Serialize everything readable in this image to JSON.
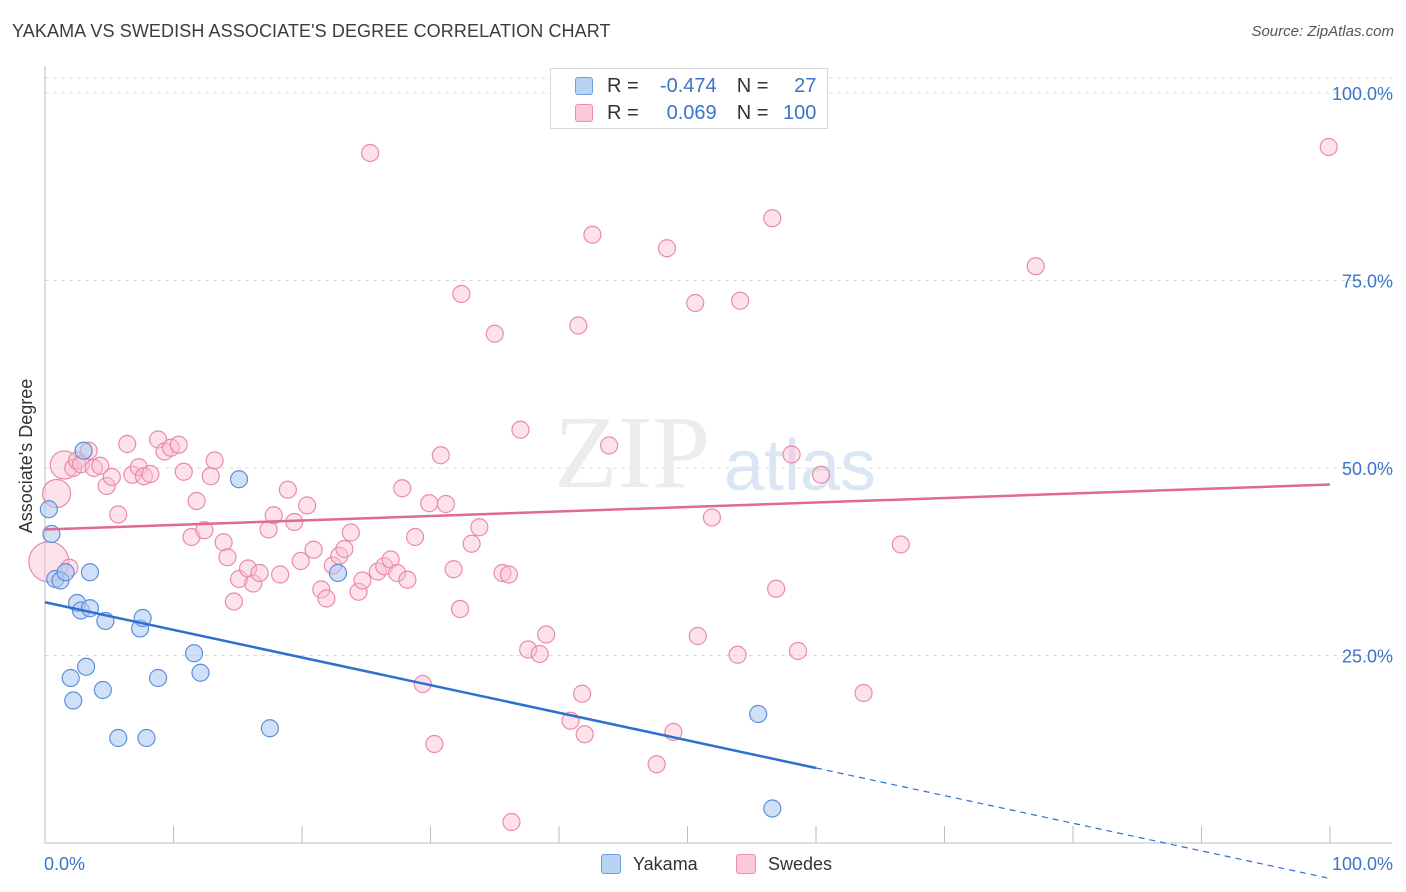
{
  "title": "YAKAMA VS SWEDISH ASSOCIATE'S DEGREE CORRELATION CHART",
  "source": "Source: ZipAtlas.com",
  "watermark": {
    "zip": "ZIP",
    "atlas": "atlas"
  },
  "legend": {
    "r_label": "R =",
    "n_label": "N =",
    "rows": [
      {
        "name": "Yakama",
        "r": "-0.474",
        "n": "27",
        "fill": "#b9d3f3",
        "stroke": "#6f9fe0"
      },
      {
        "name": "Swedes",
        "r": "0.069",
        "n": "100",
        "fill": "#fbc9d8",
        "stroke": "#ec8fae"
      }
    ]
  },
  "colors": {
    "yakama_fill": "rgba(170,200,240,0.55)",
    "yakama_stroke": "#5b8fd8",
    "yakama_line": "#2e6fd0",
    "swedes_fill": "rgba(250,190,210,0.45)",
    "swedes_stroke": "#e98aaa",
    "swedes_line": "#e06a93",
    "axis_label": "#3a74c8",
    "grid": "#dcdcdc"
  },
  "chart_data": {
    "type": "scatter",
    "title": "YAKAMA VS SWEDISH ASSOCIATE'S DEGREE CORRELATION CHART",
    "xlabel": "",
    "ylabel": "Associate's Degree",
    "xlim": [
      0,
      100
    ],
    "ylim": [
      0,
      102
    ],
    "x_tick_labels": [
      {
        "value": 0,
        "label": "0.0%"
      },
      {
        "value": 100,
        "label": "100.0%"
      }
    ],
    "y_tick_labels": [
      {
        "value": 25,
        "label": "25.0%"
      },
      {
        "value": 50,
        "label": "50.0%"
      },
      {
        "value": 75,
        "label": "75.0%"
      },
      {
        "value": 100,
        "label": "100.0%"
      }
    ],
    "series": [
      {
        "name": "Yakama",
        "r": -0.474,
        "n": 27,
        "trend": {
          "x0": 0,
          "y0": 32.1,
          "x1": 60,
          "y1": 10.0,
          "dashed_to_x": 100
        },
        "points": [
          {
            "x": 0.3,
            "y": 44.5
          },
          {
            "x": 0.5,
            "y": 41.2
          },
          {
            "x": 0.8,
            "y": 35.2
          },
          {
            "x": 1.2,
            "y": 35.0
          },
          {
            "x": 1.6,
            "y": 36.1
          },
          {
            "x": 2.0,
            "y": 22.0
          },
          {
            "x": 2.2,
            "y": 19.0
          },
          {
            "x": 2.5,
            "y": 32.0
          },
          {
            "x": 2.8,
            "y": 31.0
          },
          {
            "x": 3.0,
            "y": 52.3
          },
          {
            "x": 3.2,
            "y": 23.5
          },
          {
            "x": 3.5,
            "y": 31.3
          },
          {
            "x": 3.5,
            "y": 36.1
          },
          {
            "x": 4.5,
            "y": 20.4
          },
          {
            "x": 4.7,
            "y": 29.6
          },
          {
            "x": 5.7,
            "y": 14.0
          },
          {
            "x": 7.4,
            "y": 28.6
          },
          {
            "x": 7.6,
            "y": 30.0
          },
          {
            "x": 7.9,
            "y": 14.0
          },
          {
            "x": 8.8,
            "y": 22.0
          },
          {
            "x": 11.6,
            "y": 25.3
          },
          {
            "x": 12.1,
            "y": 22.7
          },
          {
            "x": 15.1,
            "y": 48.5
          },
          {
            "x": 17.5,
            "y": 15.3
          },
          {
            "x": 22.8,
            "y": 36.0
          },
          {
            "x": 55.5,
            "y": 17.2
          },
          {
            "x": 56.6,
            "y": 4.6
          }
        ]
      },
      {
        "name": "Swedes",
        "r": 0.069,
        "n": 100,
        "trend": {
          "x0": 0,
          "y0": 41.8,
          "x1": 100,
          "y1": 47.8
        },
        "points": [
          {
            "x": 0.3,
            "y": 37.5,
            "big": 2
          },
          {
            "x": 0.9,
            "y": 46.6,
            "big": 1
          },
          {
            "x": 1.5,
            "y": 50.4,
            "big": 1
          },
          {
            "x": 1.9,
            "y": 36.7
          },
          {
            "x": 2.2,
            "y": 50.0
          },
          {
            "x": 2.5,
            "y": 51.0
          },
          {
            "x": 2.8,
            "y": 50.5
          },
          {
            "x": 3.4,
            "y": 52.3
          },
          {
            "x": 3.8,
            "y": 50.0
          },
          {
            "x": 4.3,
            "y": 50.3
          },
          {
            "x": 4.8,
            "y": 47.6
          },
          {
            "x": 5.2,
            "y": 48.8
          },
          {
            "x": 5.7,
            "y": 43.8
          },
          {
            "x": 6.4,
            "y": 53.2
          },
          {
            "x": 6.8,
            "y": 49.1
          },
          {
            "x": 7.3,
            "y": 50.1
          },
          {
            "x": 7.7,
            "y": 48.9
          },
          {
            "x": 8.2,
            "y": 49.2
          },
          {
            "x": 8.8,
            "y": 53.8
          },
          {
            "x": 9.3,
            "y": 52.2
          },
          {
            "x": 9.8,
            "y": 52.7
          },
          {
            "x": 10.4,
            "y": 53.1
          },
          {
            "x": 10.8,
            "y": 49.5
          },
          {
            "x": 11.4,
            "y": 40.8
          },
          {
            "x": 11.8,
            "y": 45.6
          },
          {
            "x": 12.4,
            "y": 41.7
          },
          {
            "x": 12.9,
            "y": 48.9
          },
          {
            "x": 13.2,
            "y": 51.0
          },
          {
            "x": 13.9,
            "y": 40.1
          },
          {
            "x": 14.2,
            "y": 38.1
          },
          {
            "x": 14.7,
            "y": 32.2
          },
          {
            "x": 15.1,
            "y": 35.2
          },
          {
            "x": 15.8,
            "y": 36.6
          },
          {
            "x": 16.2,
            "y": 34.6
          },
          {
            "x": 16.7,
            "y": 36.0
          },
          {
            "x": 17.4,
            "y": 41.8
          },
          {
            "x": 17.8,
            "y": 43.7
          },
          {
            "x": 18.3,
            "y": 35.8
          },
          {
            "x": 18.9,
            "y": 47.1
          },
          {
            "x": 19.4,
            "y": 42.8
          },
          {
            "x": 19.9,
            "y": 37.6
          },
          {
            "x": 20.4,
            "y": 45.0
          },
          {
            "x": 20.9,
            "y": 39.1
          },
          {
            "x": 21.5,
            "y": 33.8
          },
          {
            "x": 21.9,
            "y": 32.6
          },
          {
            "x": 22.4,
            "y": 37.0
          },
          {
            "x": 22.9,
            "y": 38.3
          },
          {
            "x": 23.3,
            "y": 39.2
          },
          {
            "x": 23.8,
            "y": 41.4
          },
          {
            "x": 24.4,
            "y": 33.5
          },
          {
            "x": 24.7,
            "y": 35.0
          },
          {
            "x": 25.3,
            "y": 92.0
          },
          {
            "x": 25.9,
            "y": 36.2
          },
          {
            "x": 26.4,
            "y": 36.9
          },
          {
            "x": 26.9,
            "y": 37.8
          },
          {
            "x": 27.4,
            "y": 36.0
          },
          {
            "x": 27.8,
            "y": 47.3
          },
          {
            "x": 28.2,
            "y": 35.1
          },
          {
            "x": 28.8,
            "y": 40.8
          },
          {
            "x": 29.4,
            "y": 21.2
          },
          {
            "x": 29.9,
            "y": 45.3
          },
          {
            "x": 30.3,
            "y": 13.2
          },
          {
            "x": 30.8,
            "y": 51.7
          },
          {
            "x": 31.2,
            "y": 45.2
          },
          {
            "x": 31.8,
            "y": 36.5
          },
          {
            "x": 32.3,
            "y": 31.2
          },
          {
            "x": 32.4,
            "y": 73.2
          },
          {
            "x": 33.2,
            "y": 39.9
          },
          {
            "x": 33.8,
            "y": 42.1
          },
          {
            "x": 35.0,
            "y": 67.9
          },
          {
            "x": 35.6,
            "y": 36.0
          },
          {
            "x": 36.1,
            "y": 35.8
          },
          {
            "x": 36.3,
            "y": 2.8
          },
          {
            "x": 37.0,
            "y": 55.1
          },
          {
            "x": 37.6,
            "y": 25.8
          },
          {
            "x": 39.0,
            "y": 27.8
          },
          {
            "x": 40.9,
            "y": 16.3
          },
          {
            "x": 41.5,
            "y": 69.0
          },
          {
            "x": 41.8,
            "y": 19.9
          },
          {
            "x": 42.6,
            "y": 81.1
          },
          {
            "x": 43.9,
            "y": 53.0
          },
          {
            "x": 47.6,
            "y": 10.5
          },
          {
            "x": 48.4,
            "y": 79.3
          },
          {
            "x": 48.9,
            "y": 14.8
          },
          {
            "x": 50.6,
            "y": 72.0
          },
          {
            "x": 50.8,
            "y": 27.6
          },
          {
            "x": 51.9,
            "y": 43.4
          },
          {
            "x": 53.9,
            "y": 25.1
          },
          {
            "x": 54.1,
            "y": 72.3
          },
          {
            "x": 56.6,
            "y": 83.3
          },
          {
            "x": 56.9,
            "y": 33.9
          },
          {
            "x": 58.1,
            "y": 51.8
          },
          {
            "x": 58.6,
            "y": 25.6
          },
          {
            "x": 60.4,
            "y": 49.1
          },
          {
            "x": 63.7,
            "y": 20.0
          },
          {
            "x": 66.6,
            "y": 39.8
          },
          {
            "x": 77.1,
            "y": 76.9
          },
          {
            "x": 99.9,
            "y": 92.8
          },
          {
            "x": 38.5,
            "y": 25.2
          },
          {
            "x": 42.0,
            "y": 14.5
          }
        ]
      }
    ]
  }
}
